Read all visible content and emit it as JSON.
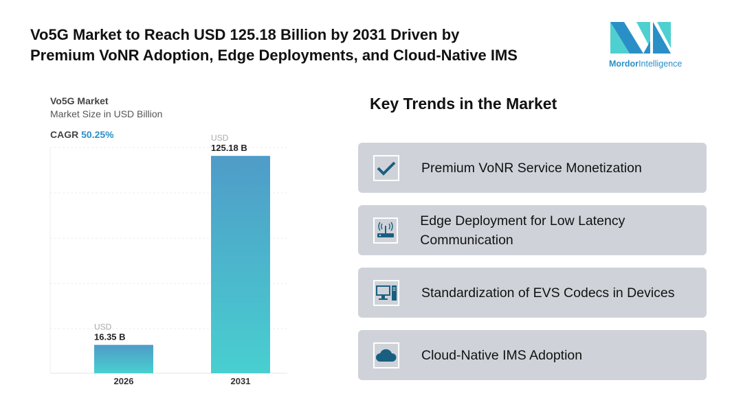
{
  "header": {
    "title_line1": "Vo5G Market to Reach USD 125.18 Billion by 2031 Driven by",
    "title_line2": "Premium VoNR Adoption, Edge Deployments, and Cloud-Native IMS"
  },
  "logo": {
    "brand": "Mordor",
    "brand2": "Intelligence"
  },
  "chart_data": {
    "type": "bar",
    "title": "Vo5G Market",
    "subtitle": "Market Size in USD Billion",
    "cagr_label": "CAGR",
    "cagr_value": "50.25%",
    "categories": [
      "2026",
      "2031"
    ],
    "values": [
      16.35,
      125.18
    ],
    "value_prefix": "USD",
    "value_labels": [
      "16.35 B",
      "125.18 B"
    ],
    "ylim": [
      0,
      130
    ],
    "grid": true,
    "colors": {
      "top": "#4f9cc8",
      "bottom": "#48cfd0"
    }
  },
  "trends": {
    "heading": "Key Trends in the Market",
    "items": [
      {
        "icon": "checkmark-icon",
        "label": "Premium VoNR Service Monetization"
      },
      {
        "icon": "router-icon",
        "label": "Edge Deployment for Low Latency Communication"
      },
      {
        "icon": "computer-icon",
        "label": "Standardization of EVS Codecs in Devices"
      },
      {
        "icon": "cloud-icon",
        "label": "Cloud-Native IMS Adoption"
      }
    ],
    "icon_color": "#1a5f80"
  }
}
